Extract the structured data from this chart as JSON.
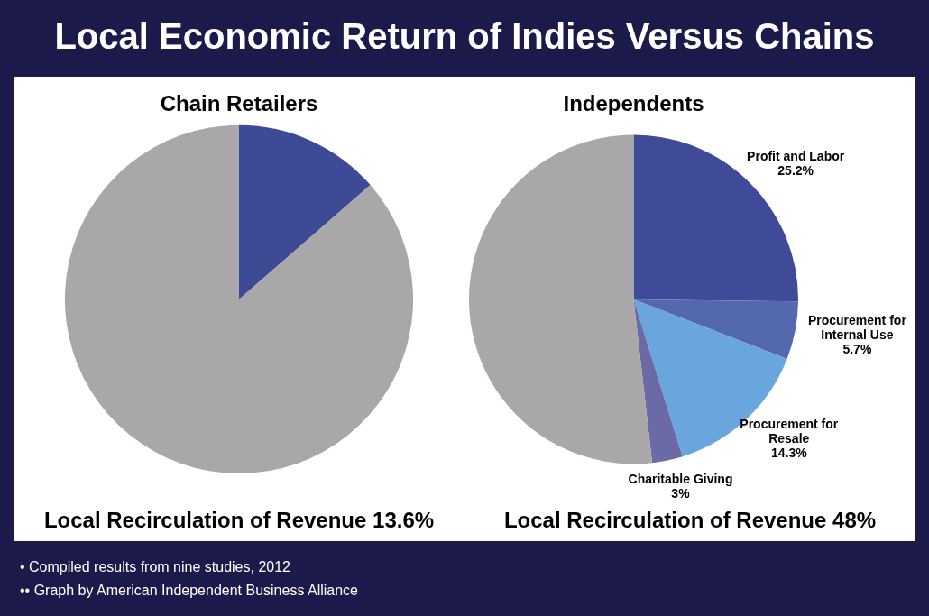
{
  "chart_data": [
    {
      "type": "pie",
      "title": "Chain Retailers",
      "categories": [
        null,
        null
      ],
      "values": [
        13.6,
        86.4
      ],
      "colors": [
        "#3d4a96",
        "#a9a7a8"
      ],
      "annotations": [
        "Local Recirculation of Revenue 13.6%"
      ],
      "legend": false
    },
    {
      "type": "pie",
      "title": "Independents",
      "categories": [
        "Profit and Labor",
        "Procurement for Internal Use",
        "Procurement for Resale",
        "Charitable Giving",
        null
      ],
      "values": [
        25.2,
        5.7,
        14.3,
        3,
        51.8
      ],
      "value_labels": [
        "25.2%",
        "5.7%",
        "14.3%",
        "3%",
        null
      ],
      "colors": [
        "#3f4b98",
        "#5469ad",
        "#6aa6de",
        "#6b69a6",
        "#a9a7a8"
      ],
      "annotations": [
        "Local Recirculation of Revenue 48%"
      ],
      "legend": false
    },
    {
      "type": "other",
      "title": "Local Economic Return of Indies Versus Chains",
      "annotations": [
        "• Compiled results from nine studies, 2012",
        "•• Graph by American Independent Business Alliance"
      ]
    }
  ]
}
